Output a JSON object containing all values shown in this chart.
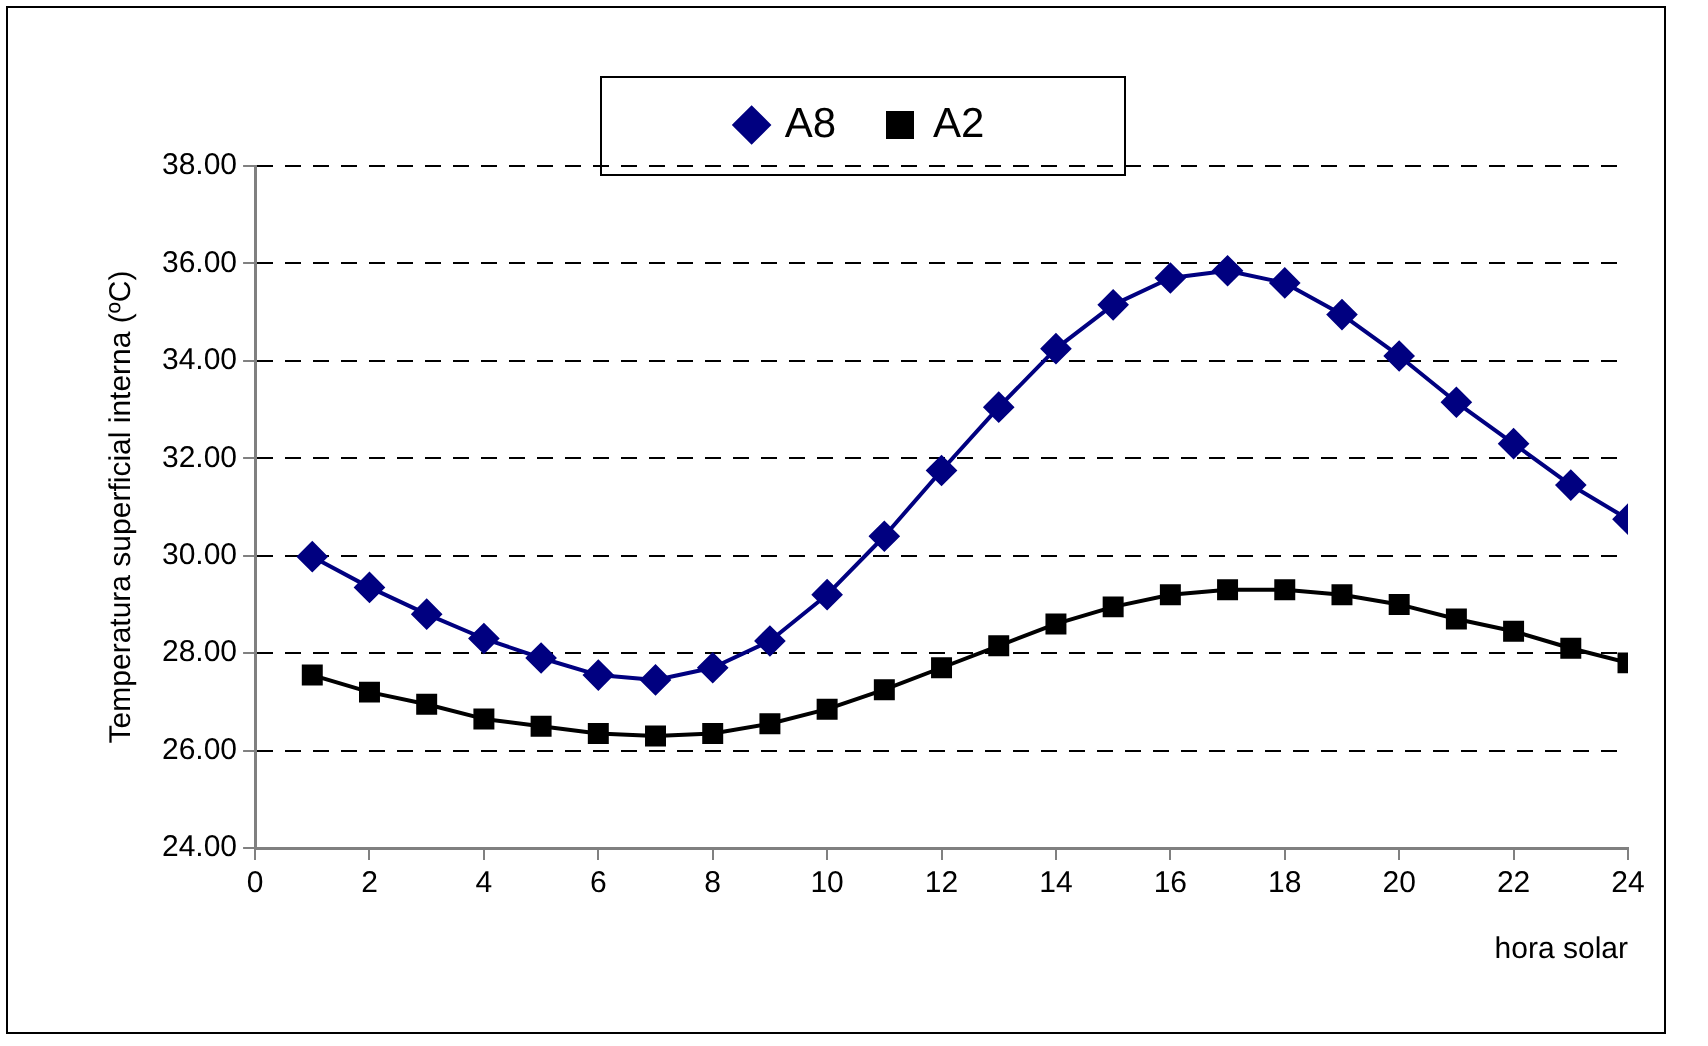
{
  "chart_data": {
    "type": "line",
    "xlabel": "hora solar",
    "ylabel": "Temperatura superficial interna (ºC)",
    "x": [
      1,
      2,
      3,
      4,
      5,
      6,
      7,
      8,
      9,
      10,
      11,
      12,
      13,
      14,
      15,
      16,
      17,
      18,
      19,
      20,
      21,
      22,
      23,
      24
    ],
    "series": [
      {
        "name": "A8",
        "color": "#000080",
        "marker": "diamond",
        "values": [
          29.98,
          29.35,
          28.8,
          28.3,
          27.9,
          27.55,
          27.45,
          27.7,
          28.25,
          29.2,
          30.4,
          31.75,
          33.05,
          34.25,
          35.15,
          35.7,
          35.85,
          35.6,
          34.95,
          34.1,
          33.15,
          32.3,
          31.45,
          30.75
        ]
      },
      {
        "name": "A2",
        "color": "#000000",
        "marker": "square",
        "values": [
          27.55,
          27.2,
          26.95,
          26.65,
          26.5,
          26.35,
          26.3,
          26.35,
          26.55,
          26.85,
          27.25,
          27.7,
          28.15,
          28.6,
          28.95,
          29.2,
          29.3,
          29.3,
          29.2,
          29.0,
          28.7,
          28.45,
          28.1,
          27.8
        ]
      }
    ],
    "xlim": [
      0,
      24
    ],
    "xticks": [
      0,
      2,
      4,
      6,
      8,
      10,
      12,
      14,
      16,
      18,
      20,
      22,
      24
    ],
    "ylim": [
      24,
      38
    ],
    "yticks": [
      {
        "value": 24,
        "label": "24.00"
      },
      {
        "value": 26,
        "label": "26.00"
      },
      {
        "value": 28,
        "label": "28.00"
      },
      {
        "value": 30,
        "label": "30.00"
      },
      {
        "value": 32,
        "label": "32.00"
      },
      {
        "value": 34,
        "label": "34.00"
      },
      {
        "value": 36,
        "label": "36.00"
      },
      {
        "value": 38,
        "label": "38.00"
      }
    ],
    "grid": "y",
    "legend": "top",
    "line_style": "solid"
  }
}
